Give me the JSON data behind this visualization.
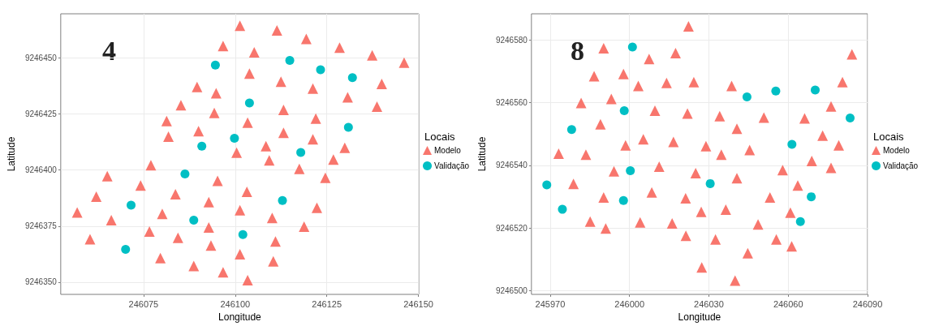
{
  "chart_data": [
    {
      "type": "scatter",
      "xlabel": "Longitude",
      "ylabel": "Latitude",
      "legend_title": "Locais",
      "annotations": [
        "4"
      ],
      "xlim": [
        246052.4,
        246150.1
      ],
      "ylim": [
        9246344.5,
        9246469.8
      ],
      "xticks": [
        246075,
        246100,
        246125,
        246150
      ],
      "yticks": [
        9246350,
        9246375,
        9246400,
        9246425,
        9246450
      ],
      "grid": true,
      "legend": "right",
      "series": [
        {
          "name": "Modelo",
          "color": "#f8766d",
          "marker": "triangle",
          "x": [
            246101.3,
            246111.4,
            246119.4,
            246128.5,
            246105.2,
            246137.4,
            246146.1,
            246096.7,
            246103.9,
            246112.5,
            246121.2,
            246140.0,
            246089.6,
            246094.8,
            246085.2,
            246130.7,
            246138.7,
            246113.2,
            246094.3,
            246081.3,
            246122.0,
            246103.4,
            246090.0,
            246081.8,
            246113.2,
            246121.2,
            246108.4,
            246129.9,
            246100.4,
            246109.3,
            246126.8,
            246077.0,
            246117.5,
            246065.1,
            246124.6,
            246095.2,
            246074.2,
            246103.2,
            246083.7,
            246062.1,
            246092.8,
            246122.3,
            246101.3,
            246056.9,
            246080.1,
            246110.1,
            246066.2,
            246118.8,
            246092.8,
            246076.6,
            246084.4,
            246060.4,
            246111.0,
            246093.4,
            246101.3,
            246110.4,
            246079.6,
            246088.7,
            246096.7,
            246103.4
          ],
          "values": [
            9246464.5,
            9246462.4,
            9246458.6,
            9246454.7,
            9246452.6,
            9246451.2,
            9246448.0,
            9246455.4,
            9246443.1,
            9246439.5,
            9246436.4,
            9246438.5,
            9246437.1,
            9246434.3,
            9246429.0,
            9246432.5,
            9246428.3,
            9246426.9,
            9246425.5,
            9246421.9,
            9246423.0,
            9246421.2,
            9246417.4,
            9246414.9,
            9246416.7,
            9246413.8,
            9246410.7,
            9246410.0,
            9246407.8,
            9246404.3,
            9246404.7,
            9246402.2,
            9246400.5,
            9246397.3,
            9246396.6,
            9246395.2,
            9246393.1,
            9246390.3,
            9246389.2,
            9246388.1,
            9246385.7,
            9246383.2,
            9246382.1,
            9246381.1,
            9246380.4,
            9246378.6,
            9246377.6,
            9246374.7,
            9246374.4,
            9246372.6,
            9246369.8,
            9246369.1,
            9246368.1,
            9246366.3,
            9246362.4,
            9246359.3,
            9246360.7,
            9246357.2,
            9246354.4,
            9246350.8
          ]
        },
        {
          "name": "Validação",
          "color": "#00bfc4",
          "marker": "circle",
          "x": [
            246094.6,
            246114.9,
            246123.3,
            246132.0,
            246103.9,
            246130.9,
            246099.8,
            246090.9,
            246117.9,
            246086.3,
            246071.6,
            246112.9,
            246088.7,
            246102.1,
            246070.1
          ],
          "values": [
            9246446.9,
            9246449.0,
            9246444.8,
            9246441.3,
            9246430.0,
            9246419.1,
            9246414.2,
            9246410.7,
            9246407.9,
            9246398.3,
            9246384.3,
            9246386.4,
            9246377.6,
            9246371.2,
            9246364.6
          ]
        }
      ]
    },
    {
      "type": "scatter",
      "xlabel": "Longitude",
      "ylabel": "Latitude",
      "legend_title": "Locais",
      "annotations": [
        "8"
      ],
      "xlim": [
        245962.9,
        246090
      ],
      "ylim": [
        9246498.9,
        9246588.3
      ],
      "xticks": [
        245970,
        246000,
        246030,
        246060,
        246090
      ],
      "yticks": [
        9246500,
        9246520,
        9246540,
        9246560,
        9246580
      ],
      "grid": true,
      "legend": "right",
      "series": [
        {
          "name": "Modelo",
          "color": "#f8766d",
          "marker": "triangle",
          "x": [
            246022.3,
            245990.2,
            246017.4,
            246007.4,
            245986.6,
            245997.7,
            246014.0,
            246024.3,
            246003.3,
            245981.7,
            245993.1,
            246009.6,
            246021.9,
            245989.0,
            246005.2,
            246016.6,
            245998.5,
            245973.2,
            245983.5,
            245994.1,
            246011.2,
            246025.0,
            245978.8,
            245990.2,
            246008.4,
            246021.2,
            245985.1,
            245991.0,
            246004.0,
            246016.1,
            246021.3,
            246084.1,
            246038.6,
            246080.5,
            246034.1,
            246050.8,
            246066.2,
            246076.2,
            246040.6,
            246073.0,
            246028.9,
            246045.4,
            246079.1,
            246034.7,
            246068.9,
            246076.2,
            246057.9,
            246040.6,
            246063.6,
            246053.1,
            246027.1,
            246036.4,
            246060.8,
            246048.6,
            246032.5,
            246055.5,
            246061.3,
            246044.7,
            246027.3,
            246039.9
          ],
          "values": [
            9246584.3,
            9246577.3,
            9246575.8,
            9246573.9,
            9246568.4,
            9246569.1,
            9246566.3,
            9246566.5,
            9246565.3,
            9246559.9,
            9246561.2,
            9246557.4,
            9246556.5,
            9246553.1,
            9246548.3,
            9246547.5,
            9246546.4,
            9246543.7,
            9246543.4,
            9246538.1,
            9246539.6,
            9246537.5,
            9246534.1,
            9246529.8,
            9246531.4,
            9246529.5,
            9246522.1,
            9246519.9,
            9246521.8,
            9246521.5,
            9246517.6,
            9246575.4,
            9246565.3,
            9246566.5,
            9246555.7,
            9246555.2,
            9246555.0,
            9246558.8,
            9246551.7,
            9246549.5,
            9246546.1,
            9246544.9,
            9246546.4,
            9246543.4,
            9246541.4,
            9246539.2,
            9246538.5,
            9246535.9,
            9246533.6,
            9246529.8,
            9246525.2,
            9246525.9,
            9246524.9,
            9246521.2,
            9246516.4,
            9246516.4,
            9246514.2,
            9246512.0,
            9246507.5,
            9246503.3
          ]
        },
        {
          "name": "Validação",
          "color": "#00bfc4",
          "marker": "circle",
          "x": [
            246001.1,
            245998.0,
            245978.1,
            246000.3,
            245968.7,
            245997.7,
            245974.6,
            246044.4,
            246055.3,
            246070.2,
            246083.4,
            246061.4,
            246030.5,
            246068.7,
            246064.6
          ],
          "values": [
            9246577.7,
            9246557.4,
            9246551.4,
            9246538.3,
            9246533.8,
            9246528.8,
            9246526.0,
            9246561.8,
            9246563.7,
            9246564.0,
            9246555.1,
            9246546.7,
            9246534.2,
            9246530.0,
            9246522.1
          ]
        }
      ]
    }
  ]
}
